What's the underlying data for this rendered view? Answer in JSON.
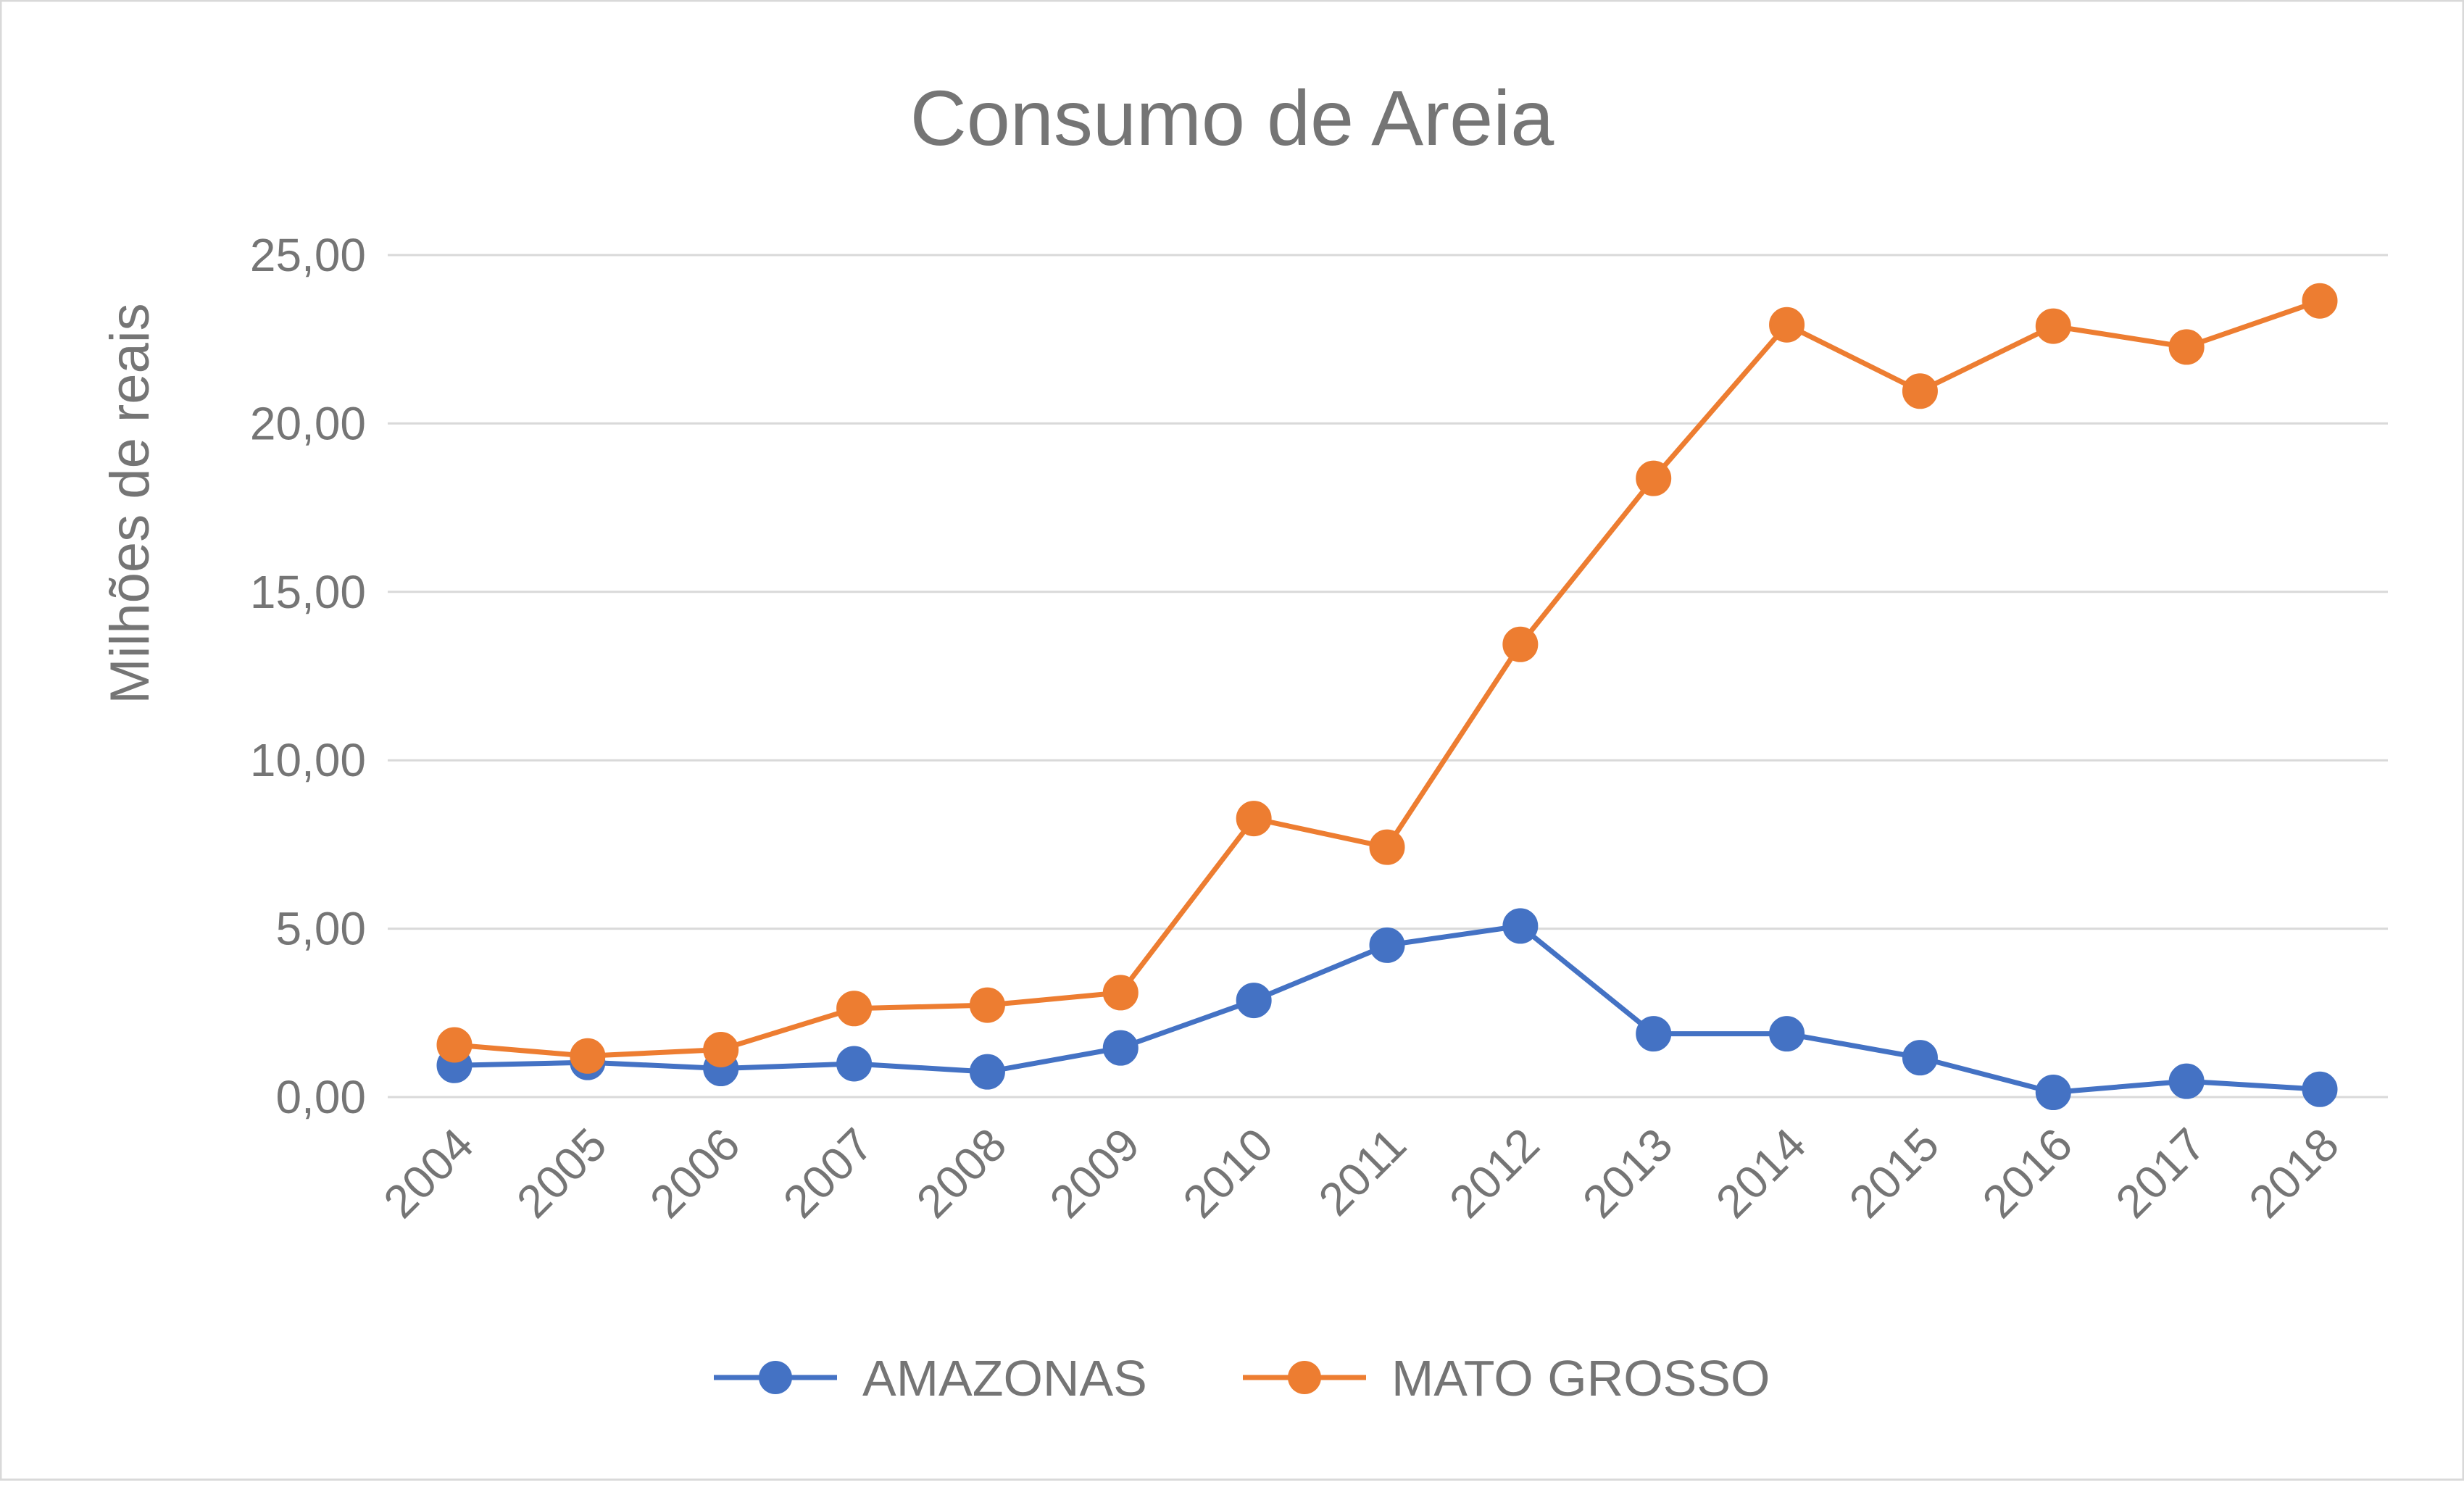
{
  "chart_data": {
    "type": "line",
    "title": "Consumo de Areia",
    "xlabel": "",
    "ylabel": "Milhões de reais",
    "ylim": [
      0,
      25
    ],
    "yticks": [
      "0,00",
      "5,00",
      "10,00",
      "15,00",
      "20,00",
      "25,00"
    ],
    "ytick_values": [
      0,
      5,
      10,
      15,
      20,
      25
    ],
    "grid": true,
    "legend": "bottom",
    "categories": [
      "2004",
      "2005",
      "2006",
      "2007",
      "2008",
      "2009",
      "2010",
      "2011",
      "2012",
      "2013",
      "2014",
      "2015",
      "2016",
      "2017",
      "2018"
    ],
    "series": [
      {
        "name": "AMAZONAS",
        "color": "#4472C4",
        "values": [
          0.94,
          1.03,
          0.85,
          0.99,
          0.75,
          1.46,
          2.87,
          4.51,
          5.08,
          1.88,
          1.88,
          1.17,
          0.14,
          0.47,
          0.23
        ]
      },
      {
        "name": "MATO GROSSO",
        "color": "#ED7D31",
        "values": [
          1.55,
          1.22,
          1.41,
          2.63,
          2.73,
          3.1,
          8.27,
          7.42,
          13.44,
          18.37,
          22.93,
          20.96,
          22.89,
          22.27,
          23.64
        ]
      }
    ]
  }
}
